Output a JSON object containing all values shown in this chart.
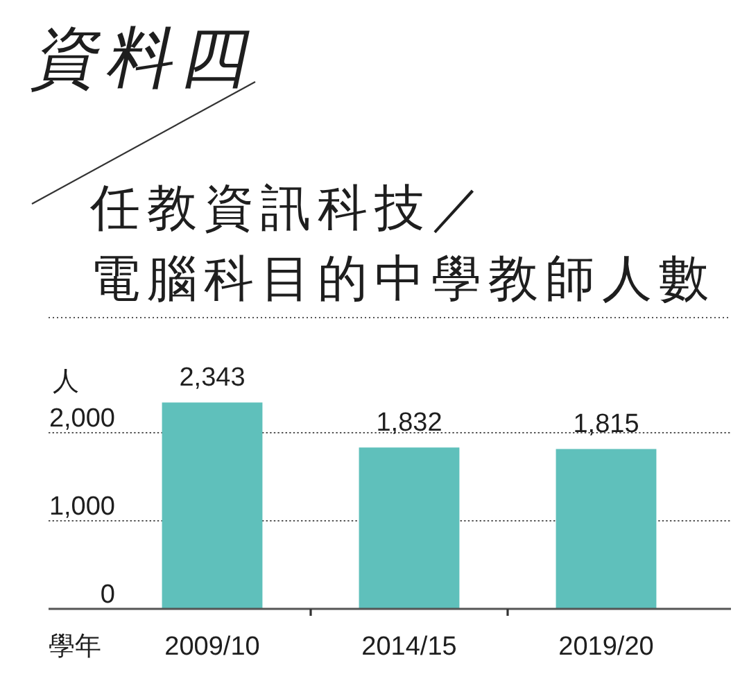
{
  "chart_data": {
    "type": "bar",
    "title": "任教資訊科技／電腦科目的中學教師人數",
    "annotations": [
      "資料四"
    ],
    "xlabel": "學年",
    "ylabel": "人",
    "categories": [
      "2009/10",
      "2014/15",
      "2019/20"
    ],
    "values": [
      2343,
      1832,
      1815
    ],
    "color": "#5fc0bb",
    "value_labels": [
      "2,343",
      "1,832",
      "1,815"
    ],
    "ylim": [
      0,
      2343
    ],
    "yticks": [
      0,
      {
        "value": 1000,
        "label": "1,000"
      },
      {
        "value": 2000,
        "label": "2,000"
      }
    ],
    "grid": "y"
  }
}
